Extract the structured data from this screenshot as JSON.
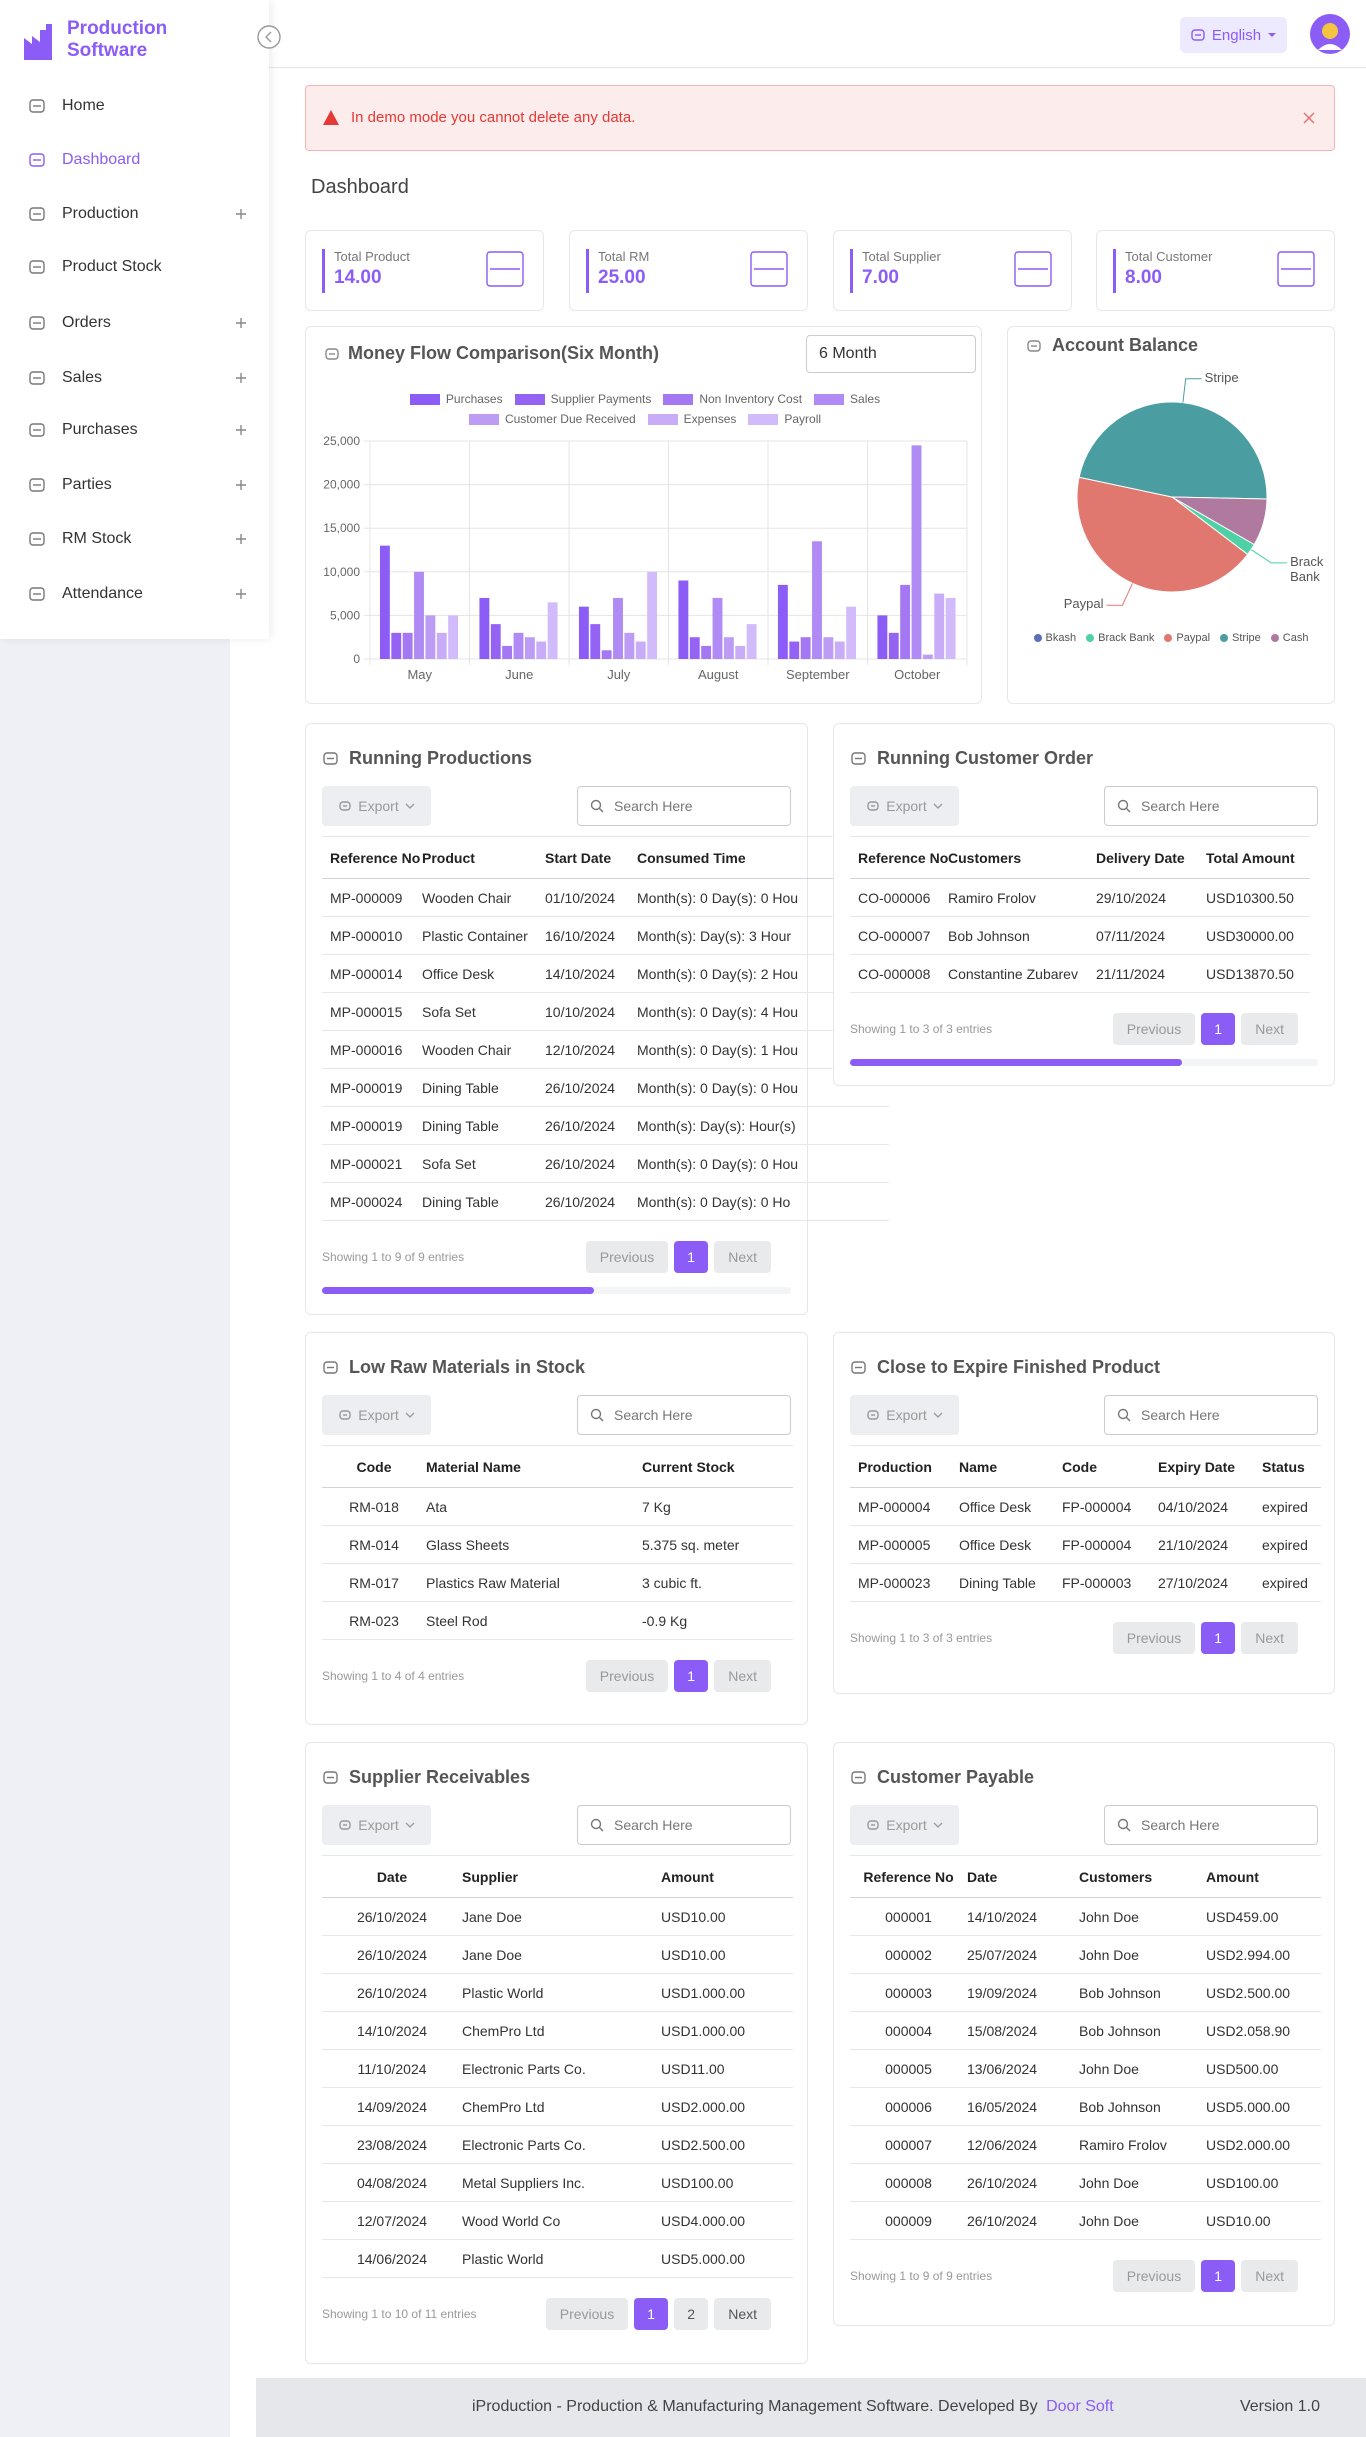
{
  "sidebar": {
    "brand": "Production Software",
    "menu": [
      {
        "label": "Home"
      },
      {
        "label": "Dashboard",
        "active": true
      },
      {
        "label": "Production",
        "submenu": true
      },
      {
        "label": "Product Stock"
      },
      {
        "label": "Orders",
        "submenu": true
      },
      {
        "label": "Sales",
        "submenu": true
      },
      {
        "label": "Purchases",
        "submenu": true
      },
      {
        "label": "Parties",
        "submenu": true
      },
      {
        "label": "RM Stock",
        "submenu": true
      },
      {
        "label": "Attendance",
        "submenu": true
      }
    ]
  },
  "topbar": {
    "language": "English"
  },
  "alert": "In demo mode you cannot delete any data.",
  "page_title": "Dashboard",
  "stats": [
    {
      "label": "Total Product",
      "value": "14.00"
    },
    {
      "label": "Total RM",
      "value": "25.00"
    },
    {
      "label": "Total Supplier",
      "value": "7.00"
    },
    {
      "label": "Total Customer",
      "value": "8.00"
    }
  ],
  "filters": {
    "period": "6 Month"
  },
  "chart_data": [
    {
      "type": "bar",
      "title": "Money Flow Comparison(Six Month)",
      "categories": [
        "May",
        "June",
        "July",
        "August",
        "September",
        "October"
      ],
      "series": [
        {
          "name": "Purchases",
          "color": "#8b5cf6",
          "values": [
            13000,
            7000,
            6000,
            9000,
            8500,
            5000
          ]
        },
        {
          "name": "Supplier Payments",
          "color": "#9563f4",
          "values": [
            3000,
            4000,
            4000,
            2500,
            2000,
            3000
          ]
        },
        {
          "name": "Non Inventory Cost",
          "color": "#a378f2",
          "values": [
            3000,
            1500,
            1000,
            1500,
            2500,
            8500
          ]
        },
        {
          "name": "Sales",
          "color": "#b08af5",
          "values": [
            10000,
            3000,
            7000,
            7000,
            13500,
            24500
          ]
        },
        {
          "name": "Customer Due Received",
          "color": "#bd9cf6",
          "values": [
            5000,
            2500,
            3000,
            2500,
            2500,
            500
          ]
        },
        {
          "name": "Expenses",
          "color": "#c8acf8",
          "values": [
            3000,
            2000,
            2000,
            1500,
            2000,
            7500
          ]
        },
        {
          "name": "Payroll",
          "color": "#d2bbfa",
          "values": [
            5000,
            6500,
            10000,
            4000,
            6000,
            7000
          ]
        }
      ],
      "ylim": [
        0,
        25000
      ],
      "yticks": [
        0,
        {
          "value": 5000,
          "label": "5,000"
        },
        {
          "value": 10000,
          "label": "10,000"
        },
        {
          "value": 15000,
          "label": "15,000"
        },
        {
          "value": 20000,
          "label": "20,000"
        },
        {
          "value": 25000,
          "label": "25,000"
        }
      ],
      "grid": true
    },
    {
      "type": "pie",
      "title": "Account Balance",
      "categories": [
        "Bkash",
        "Brack Bank",
        "Paypal",
        "Stripe",
        "Cash"
      ],
      "values": [
        0,
        2,
        43,
        47,
        8
      ],
      "colors": [
        "#5b6fb5",
        "#4fd1a5",
        "#e07870",
        "#4a9da0",
        "#b07aa0"
      ],
      "labeled": [
        false,
        true,
        true,
        true,
        false
      ]
    }
  ],
  "tables": [
    {
      "title": "Running Productions",
      "export": "Export",
      "search": "Search Here",
      "columns": [
        "Reference No",
        "Product",
        "Start Date",
        "Consumed Time"
      ],
      "rows": [
        [
          "MP-000009",
          "Wooden Chair",
          "01/10/2024",
          "Month(s): 0 Day(s): 0 Hou"
        ],
        [
          "MP-000010",
          "Plastic Container",
          "16/10/2024",
          "Month(s): Day(s): 3 Hour"
        ],
        [
          "MP-000014",
          "Office Desk",
          "14/10/2024",
          "Month(s): 0 Day(s): 2 Hou"
        ],
        [
          "MP-000015",
          "Sofa Set",
          "10/10/2024",
          "Month(s): 0 Day(s): 4 Hou"
        ],
        [
          "MP-000016",
          "Wooden Chair",
          "12/10/2024",
          "Month(s): 0 Day(s): 1 Hou"
        ],
        [
          "MP-000019",
          "Dining Table",
          "26/10/2024",
          "Month(s): 0 Day(s): 0 Hou"
        ],
        [
          "MP-000019",
          "Dining Table",
          "26/10/2024",
          "Month(s): Day(s): Hour(s)"
        ],
        [
          "MP-000021",
          "Sofa Set",
          "26/10/2024",
          "Month(s): 0 Day(s): 0 Hou"
        ],
        [
          "MP-000024",
          "Dining Table",
          "26/10/2024",
          "Month(s): 0 Day(s): 0 Ho"
        ]
      ],
      "info": "Showing 1 to 9 of 9 entries",
      "pagination": {
        "previous": "Previous",
        "pages": [
          "1"
        ],
        "current": 0,
        "next": "Next"
      }
    },
    {
      "title": "Running Customer Order",
      "export": "Export",
      "search": "Search Here",
      "columns": [
        "Reference No",
        "Customers",
        "Delivery Date",
        "Total Amount"
      ],
      "rows": [
        [
          "CO-000006",
          "Ramiro Frolov",
          "29/10/2024",
          "USD10300.50"
        ],
        [
          "CO-000007",
          "Bob Johnson",
          "07/11/2024",
          "USD30000.00"
        ],
        [
          "CO-000008",
          "Constantine Zubarev",
          "21/11/2024",
          "USD13870.50"
        ]
      ],
      "info": "Showing 1 to 3 of 3 entries",
      "pagination": {
        "previous": "Previous",
        "pages": [
          "1"
        ],
        "current": 0,
        "next": "Next"
      }
    },
    {
      "title": "Low Raw Materials in Stock",
      "export": "Export",
      "search": "Search Here",
      "columns": [
        "Code",
        "Material Name",
        "Current Stock"
      ],
      "rows": [
        [
          "RM-018",
          "Ata",
          "7 Kg"
        ],
        [
          "RM-014",
          "Glass Sheets",
          "5.375 sq. meter"
        ],
        [
          "RM-017",
          "Plastics Raw Material",
          "3 cubic ft."
        ],
        [
          "RM-023",
          "Steel Rod",
          "-0.9 Kg"
        ]
      ],
      "info": "Showing 1 to 4 of 4 entries",
      "pagination": {
        "previous": "Previous",
        "pages": [
          "1"
        ],
        "current": 0,
        "next": "Next"
      }
    },
    {
      "title": "Close to Expire Finished Product",
      "export": "Export",
      "search": "Search Here",
      "columns": [
        "Production",
        "Name",
        "Code",
        "Expiry Date",
        "Status"
      ],
      "rows": [
        [
          "MP-000004",
          "Office Desk",
          "FP-000004",
          "04/10/2024",
          "expired"
        ],
        [
          "MP-000005",
          "Office Desk",
          "FP-000004",
          "21/10/2024",
          "expired"
        ],
        [
          "MP-000023",
          "Dining Table",
          "FP-000003",
          "27/10/2024",
          "expired"
        ]
      ],
      "info": "Showing 1 to 3 of 3 entries",
      "pagination": {
        "previous": "Previous",
        "pages": [
          "1"
        ],
        "current": 0,
        "next": "Next"
      }
    },
    {
      "title": "Supplier Receivables",
      "export": "Export",
      "search": "Search Here",
      "columns": [
        "Date",
        "Supplier",
        "Amount"
      ],
      "rows": [
        [
          "26/10/2024",
          "Jane Doe",
          "USD10.00"
        ],
        [
          "26/10/2024",
          "Jane Doe",
          "USD10.00"
        ],
        [
          "26/10/2024",
          "Plastic World",
          "USD1.000.00"
        ],
        [
          "14/10/2024",
          "ChemPro Ltd",
          "USD1.000.00"
        ],
        [
          "11/10/2024",
          "Electronic Parts Co.",
          "USD11.00"
        ],
        [
          "14/09/2024",
          "ChemPro Ltd",
          "USD2.000.00"
        ],
        [
          "23/08/2024",
          "Electronic Parts Co.",
          "USD2.500.00"
        ],
        [
          "04/08/2024",
          "Metal Suppliers Inc.",
          "USD100.00"
        ],
        [
          "12/07/2024",
          "Wood World Co",
          "USD4.000.00"
        ],
        [
          "14/06/2024",
          "Plastic World",
          "USD5.000.00"
        ]
      ],
      "info": "Showing 1 to 10 of 11 entries",
      "pagination": {
        "previous": "Previous",
        "pages": [
          "1",
          "2"
        ],
        "current": 0,
        "next": "Next"
      }
    },
    {
      "title": "Customer Payable",
      "export": "Export",
      "search": "Search Here",
      "columns": [
        "Reference No",
        "Date",
        "Customers",
        "Amount"
      ],
      "rows": [
        [
          "000001",
          "14/10/2024",
          "John Doe",
          "USD459.00"
        ],
        [
          "000002",
          "25/07/2024",
          "John Doe",
          "USD2.994.00"
        ],
        [
          "000003",
          "19/09/2024",
          "Bob Johnson",
          "USD2.500.00"
        ],
        [
          "000004",
          "15/08/2024",
          "Bob Johnson",
          "USD2.058.90"
        ],
        [
          "000005",
          "13/06/2024",
          "John Doe",
          "USD500.00"
        ],
        [
          "000006",
          "16/05/2024",
          "Bob Johnson",
          "USD5.000.00"
        ],
        [
          "000007",
          "12/06/2024",
          "Ramiro Frolov",
          "USD2.000.00"
        ],
        [
          "000008",
          "26/10/2024",
          "John Doe",
          "USD100.00"
        ],
        [
          "000009",
          "26/10/2024",
          "John Doe",
          "USD10.00"
        ]
      ],
      "info": "Showing 1 to 9 of 9 entries",
      "pagination": {
        "previous": "Previous",
        "pages": [
          "1"
        ],
        "current": 0,
        "next": "Next"
      }
    }
  ],
  "footer": {
    "text": "iProduction - Production & Manufacturing Management Software. Developed By",
    "link": "Door Soft",
    "version": "Version 1.0"
  }
}
